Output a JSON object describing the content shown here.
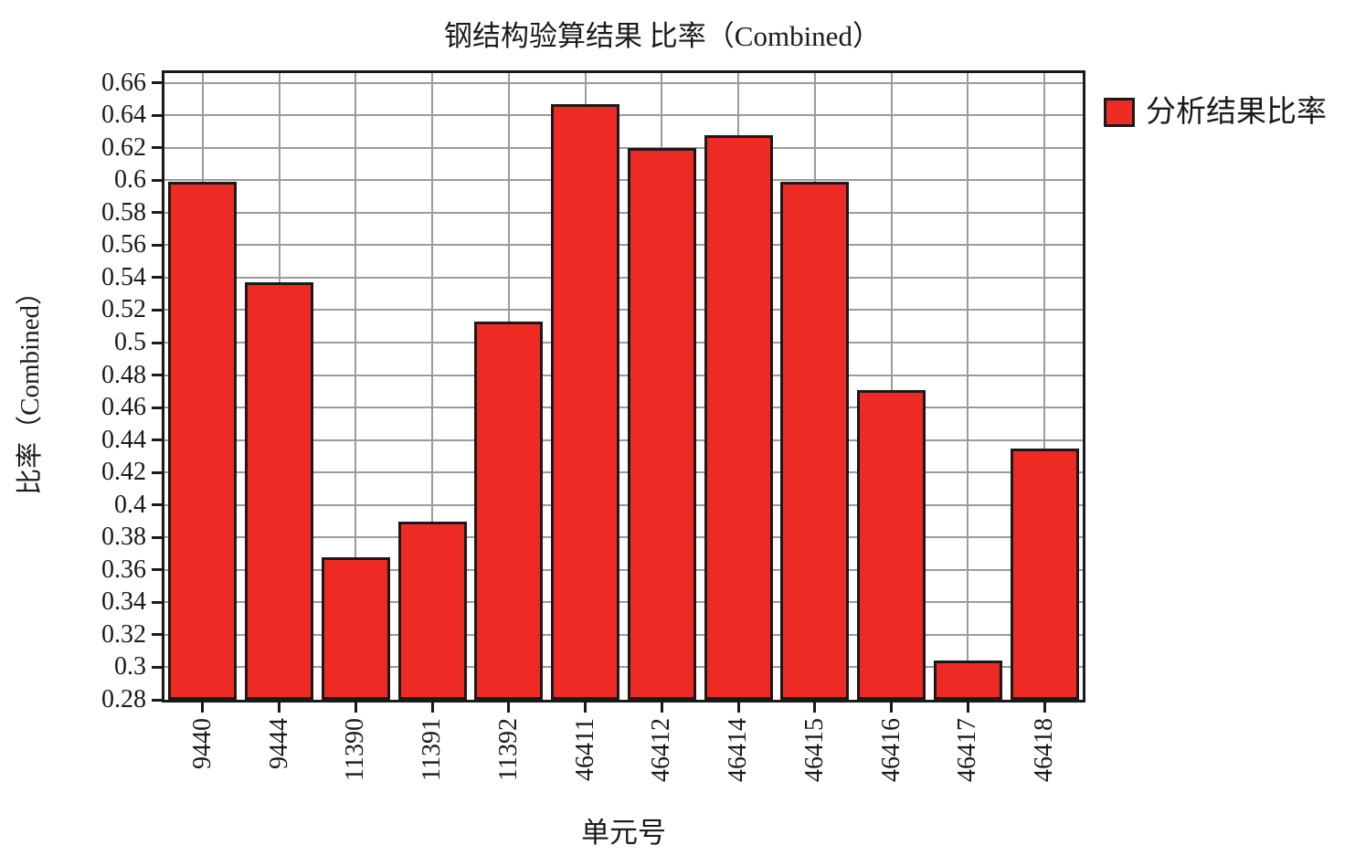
{
  "title": "钢结构验算结果 比率（Combined）",
  "colors": {
    "bar_fill": "#ee2a24",
    "bar_border": "#1a1a1a",
    "grid": "#9b9b9b",
    "axis": "#1a1a1a",
    "background": "#ffffff",
    "text": "#1a1a1a"
  },
  "chart_data": {
    "type": "bar",
    "title": "钢结构验算结果 比率（Combined）",
    "xlabel": "单元号",
    "ylabel": "比率（Combined）",
    "legend_label": "分析结果比率",
    "legend_position": "right",
    "grid": true,
    "categories": [
      "9440",
      "9444",
      "11390",
      "11391",
      "11392",
      "46411",
      "46412",
      "46414",
      "46415",
      "46416",
      "46417",
      "46418"
    ],
    "values": [
      0.599,
      0.537,
      0.368,
      0.39,
      0.513,
      0.647,
      0.62,
      0.628,
      0.599,
      0.471,
      0.304,
      0.435
    ],
    "series": [
      {
        "name": "分析结果比率",
        "values": [
          0.599,
          0.537,
          0.368,
          0.39,
          0.513,
          0.647,
          0.62,
          0.628,
          0.599,
          0.471,
          0.304,
          0.435
        ]
      }
    ],
    "ylim": [
      0.28,
      0.666
    ],
    "yticks": [
      "0.66",
      "0.64",
      "0.62",
      "0.6",
      "0.58",
      "0.56",
      "0.54",
      "0.52",
      "0.5",
      "0.48",
      "0.46",
      "0.44",
      "0.42",
      "0.4",
      "0.38",
      "0.36",
      "0.34",
      "0.32",
      "0.3",
      "0.28"
    ]
  }
}
